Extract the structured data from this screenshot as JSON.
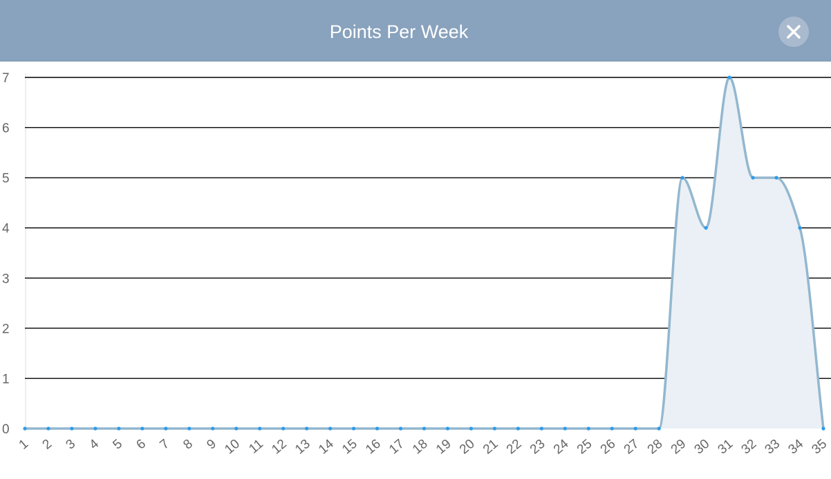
{
  "modal": {
    "title": "Points Per Week",
    "close_icon": "close-icon"
  },
  "colors": {
    "header_bg": "#89a2bd",
    "close_bg": "#a9bace",
    "line": "#93b7cf",
    "fill": "#eaf0f5",
    "point": "#2c9bea",
    "grid": "#000000",
    "tick_text": "#666666"
  },
  "chart_data": {
    "type": "area",
    "title": "Points Per Week",
    "xlabel": "",
    "ylabel": "",
    "categories": [
      "1",
      "2",
      "3",
      "4",
      "5",
      "6",
      "7",
      "8",
      "9",
      "10",
      "11",
      "12",
      "13",
      "14",
      "15",
      "16",
      "17",
      "18",
      "19",
      "20",
      "21",
      "22",
      "23",
      "24",
      "25",
      "26",
      "27",
      "28",
      "29",
      "30",
      "31",
      "32",
      "33",
      "34",
      "35"
    ],
    "series": [
      {
        "values": [
          0,
          0,
          0,
          0,
          0,
          0,
          0,
          0,
          0,
          0,
          0,
          0,
          0,
          0,
          0,
          0,
          0,
          0,
          0,
          0,
          0,
          0,
          0,
          0,
          0,
          0,
          0,
          0,
          5,
          4,
          7,
          5,
          5,
          4,
          0
        ]
      }
    ],
    "ylim": [
      0,
      7
    ],
    "yticks": [
      "0",
      "1",
      "2",
      "3",
      "4",
      "5",
      "6",
      "7"
    ],
    "grid": true,
    "smooth": true,
    "legend": "none"
  }
}
